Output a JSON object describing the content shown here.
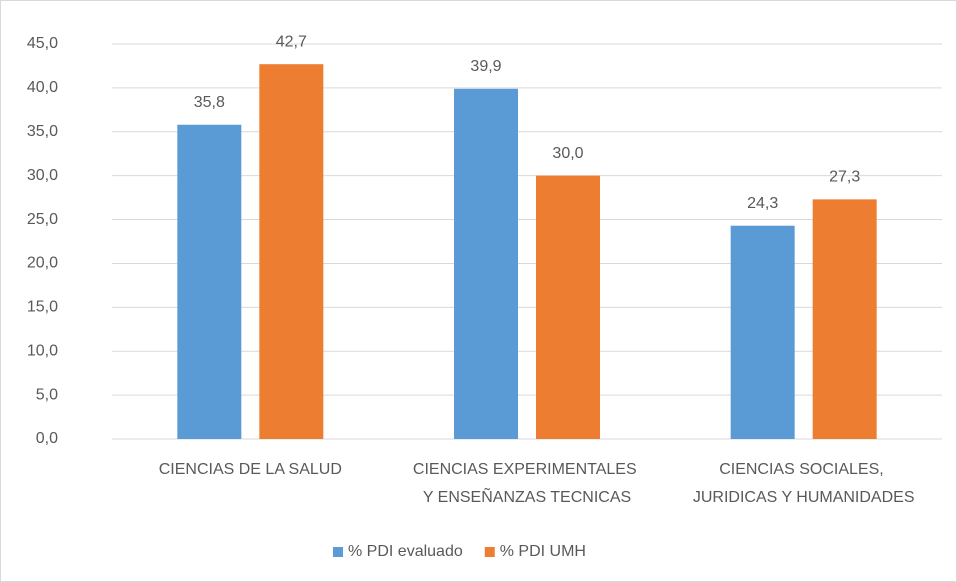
{
  "chart_data": {
    "type": "bar",
    "categories": [
      "CIENCIAS DE LA SALUD",
      "CIENCIAS EXPERIMENTALES Y ENSEÑANZAS TECNICAS",
      "CIENCIAS SOCIALES, JURIDICAS Y HUMANIDADES"
    ],
    "series": [
      {
        "name": "% PDI evaluado",
        "color": "#5b9bd5",
        "values": [
          35.8,
          39.9,
          24.3
        ],
        "value_labels": [
          "35,8",
          "39,9",
          "24,3"
        ]
      },
      {
        "name": "% PDI UMH",
        "color": "#ed7d31",
        "values": [
          42.7,
          30.0,
          27.3
        ],
        "value_labels": [
          "42,7",
          "30,0",
          "27,3"
        ]
      }
    ],
    "ylim": [
      0,
      45
    ],
    "yticks": [
      {
        "value": 0,
        "label": "0,0"
      },
      {
        "value": 5,
        "label": "5,0"
      },
      {
        "value": 10,
        "label": "10,0"
      },
      {
        "value": 15,
        "label": "15,0"
      },
      {
        "value": 20,
        "label": "20,0"
      },
      {
        "value": 25,
        "label": "25,0"
      },
      {
        "value": 30,
        "label": "30,0"
      },
      {
        "value": 35,
        "label": "35,0"
      },
      {
        "value": 40,
        "label": "40,0"
      },
      {
        "value": 45,
        "label": "45,0"
      }
    ],
    "grid": true,
    "legend": "bottom"
  }
}
